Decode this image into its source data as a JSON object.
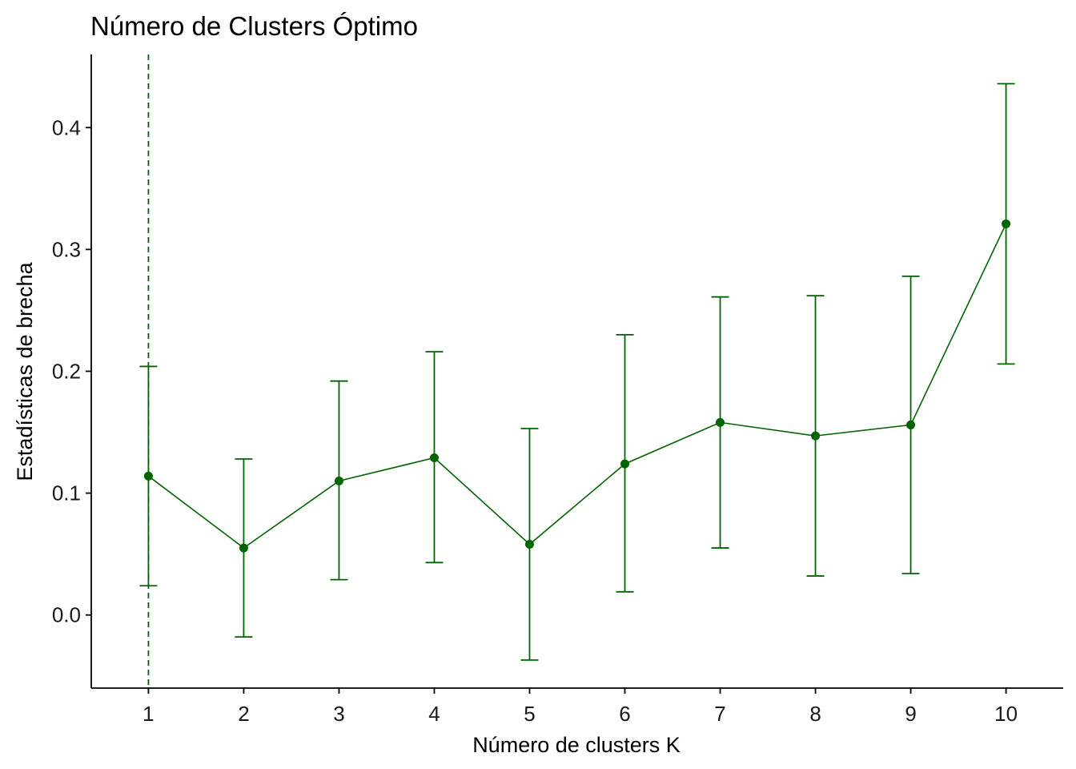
{
  "chart_data": {
    "type": "line",
    "title": "Número de Clusters Óptimo",
    "xlabel": "Número de clusters K",
    "ylabel": "Estadísticas de brecha",
    "x": [
      1,
      2,
      3,
      4,
      5,
      6,
      7,
      8,
      9,
      10
    ],
    "x_tick_labels": [
      "1",
      "2",
      "3",
      "4",
      "5",
      "6",
      "7",
      "8",
      "9",
      "10"
    ],
    "y_ticks": [
      0.0,
      0.1,
      0.2,
      0.3,
      0.4
    ],
    "y_tick_labels": [
      "0.0",
      "0.1",
      "0.2",
      "0.3",
      "0.4"
    ],
    "xlim": [
      0.4,
      10.6
    ],
    "ylim": [
      -0.06,
      0.46
    ],
    "grid": false,
    "series": [
      {
        "values": [
          0.114,
          0.055,
          0.11,
          0.129,
          0.058,
          0.124,
          0.158,
          0.147,
          0.156,
          0.321
        ],
        "error_lower": [
          0.024,
          -0.018,
          0.029,
          0.043,
          -0.037,
          0.019,
          0.055,
          0.032,
          0.034,
          0.206
        ],
        "error_upper": [
          0.204,
          0.128,
          0.192,
          0.216,
          0.153,
          0.23,
          0.261,
          0.262,
          0.278,
          0.436
        ]
      }
    ],
    "optimal_k": 1,
    "colors": {
      "series": "#006400",
      "axis": "#000000",
      "text": "#1a1a1a"
    }
  }
}
